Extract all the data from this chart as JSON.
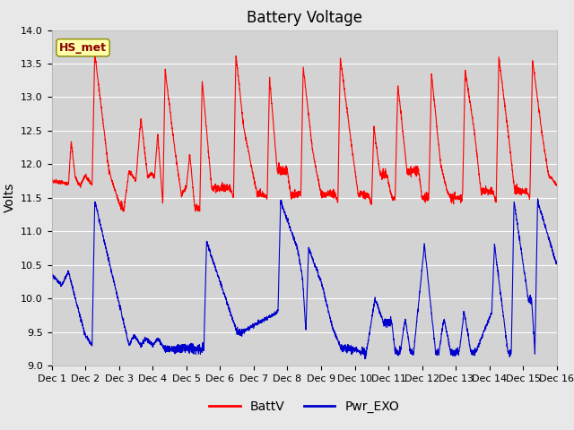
{
  "title": "Battery Voltage",
  "ylabel": "Volts",
  "xlabel": "",
  "ylim": [
    9.0,
    14.0
  ],
  "xlim": [
    0,
    15
  ],
  "xtick_labels": [
    "Dec 1",
    "Dec 2",
    "Dec 3",
    "Dec 4",
    "Dec 5",
    "Dec 6",
    "Dec 7",
    "Dec 8",
    "Dec 9",
    "Dec 10",
    "Dec 11",
    "Dec 12",
    "Dec 13",
    "Dec 14",
    "Dec 15",
    "Dec 16"
  ],
  "xtick_positions": [
    0,
    1,
    2,
    3,
    4,
    5,
    6,
    7,
    8,
    9,
    10,
    11,
    12,
    13,
    14,
    15
  ],
  "batt_color": "#ff0000",
  "exo_color": "#0000cc",
  "fig_bg_color": "#e8e8e8",
  "plot_bg_color": "#d3d3d3",
  "grid_color": "#ffffff",
  "legend_label_batt": "BattV",
  "legend_label_exo": "Pwr_EXO",
  "station_label": "HS_met",
  "title_fontsize": 12,
  "label_fontsize": 10,
  "tick_fontsize": 8,
  "legend_fontsize": 10
}
